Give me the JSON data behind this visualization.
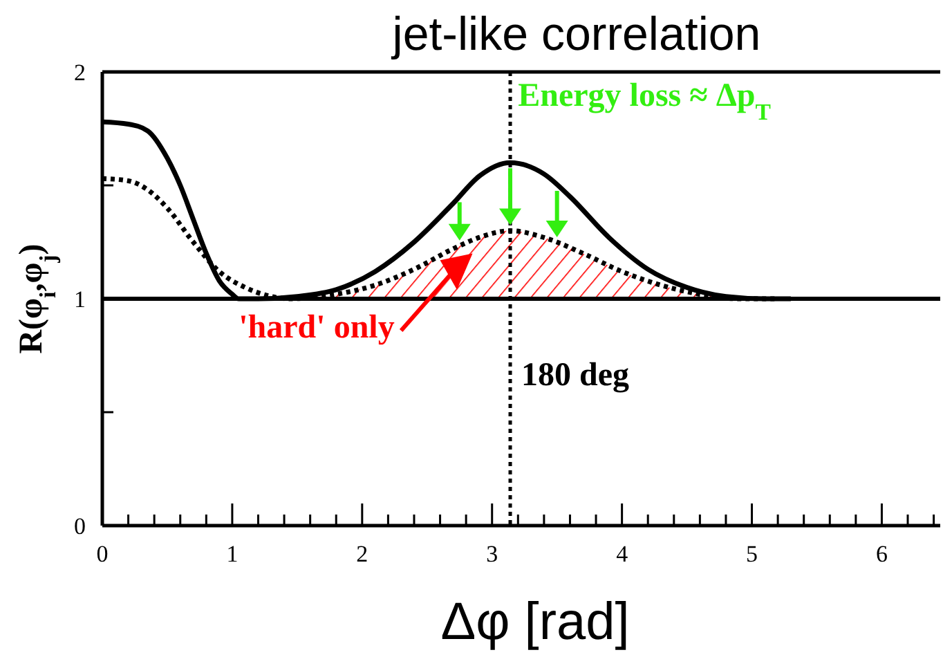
{
  "chart_data": {
    "type": "line",
    "title": "jet-like correlation",
    "xlabel": "Δφ [rad]",
    "ylabel": "R(φ$_{i}$,φ$_{j}$)",
    "xlim": [
      0,
      6.45
    ],
    "ylim": [
      0,
      2
    ],
    "xticks": [
      0,
      {
        "value": 0.2,
        "label": null
      },
      {
        "value": 0.4,
        "label": null
      },
      {
        "value": 0.6,
        "label": null
      },
      {
        "value": 0.8,
        "label": null
      },
      1,
      {
        "value": 1.2,
        "label": null
      },
      {
        "value": 1.4,
        "label": null
      },
      {
        "value": 1.6,
        "label": null
      },
      {
        "value": 1.8,
        "label": null
      },
      2,
      {
        "value": 2.2,
        "label": null
      },
      {
        "value": 2.4,
        "label": null
      },
      {
        "value": 2.6,
        "label": null
      },
      {
        "value": 2.8,
        "label": null
      },
      3,
      {
        "value": 3.2,
        "label": null
      },
      {
        "value": 3.4,
        "label": null
      },
      {
        "value": 3.6,
        "label": null
      },
      {
        "value": 3.8,
        "label": null
      },
      4,
      {
        "value": 4.2,
        "label": null
      },
      {
        "value": 4.4,
        "label": null
      },
      {
        "value": 4.6,
        "label": null
      },
      {
        "value": 4.8,
        "label": null
      },
      5,
      {
        "value": 5.2,
        "label": null
      },
      {
        "value": 5.4,
        "label": null
      },
      {
        "value": 5.6,
        "label": null
      },
      {
        "value": 5.8,
        "label": null
      },
      6,
      {
        "value": 6.2,
        "label": null
      },
      {
        "value": 6.4,
        "label": null
      }
    ],
    "yticks": [
      0,
      {
        "value": 0.5,
        "label": null
      },
      1,
      {
        "value": 1.5,
        "label": null
      },
      2
    ],
    "series": [
      {
        "type": "area",
        "color": "#ff0000",
        "x": [
          1.1,
          1.3,
          1.45,
          1.8,
          2.1,
          2.4,
          2.7,
          2.9,
          3.14,
          3.4,
          3.7,
          4.0,
          4.3,
          4.6,
          4.9,
          5.3
        ],
        "values": [
          1.0,
          1.0,
          1.0,
          1.02,
          1.06,
          1.13,
          1.22,
          1.27,
          1.3,
          1.27,
          1.2,
          1.12,
          1.06,
          1.02,
          1.0,
          1.0
        ]
      },
      {
        "color": "#000000",
        "line_style": "solid",
        "x": [
          0,
          0.2,
          0.35,
          0.5,
          0.6,
          0.7,
          0.8,
          0.9,
          1.0,
          1.05,
          1.2,
          1.5,
          1.8,
          2.1,
          2.4,
          2.7,
          2.9,
          3.14,
          3.4,
          3.6,
          3.9,
          4.2,
          4.5,
          4.8,
          5.1,
          5.3
        ],
        "values": [
          1.78,
          1.77,
          1.74,
          1.62,
          1.5,
          1.35,
          1.2,
          1.08,
          1.02,
          1.0,
          1.0,
          1.01,
          1.04,
          1.12,
          1.25,
          1.42,
          1.54,
          1.6,
          1.55,
          1.45,
          1.27,
          1.13,
          1.05,
          1.01,
          1.0,
          1.0
        ]
      },
      {
        "color": "#000000",
        "line_style": "dotted",
        "x": [
          0,
          0.2,
          0.35,
          0.5,
          0.7,
          0.9,
          1.1,
          1.3,
          1.45,
          1.8,
          2.1,
          2.4,
          2.7,
          2.9,
          3.14,
          3.4,
          3.7,
          4.0,
          4.3,
          4.6,
          4.9,
          5.2
        ],
        "values": [
          1.53,
          1.52,
          1.48,
          1.4,
          1.25,
          1.12,
          1.05,
          1.01,
          1.0,
          1.02,
          1.06,
          1.13,
          1.22,
          1.27,
          1.3,
          1.27,
          1.2,
          1.12,
          1.06,
          1.02,
          1.0,
          1.0
        ]
      }
    ],
    "ref_lines": [
      {
        "axis": "y",
        "value": 1,
        "label": null,
        "color": "#000000",
        "line_style": "solid"
      },
      {
        "axis": "x",
        "value": 3.14,
        "label": "180 deg",
        "color": "#000000",
        "line_style": "dotted"
      }
    ],
    "annotations": [
      "Energy loss ≈ Δp$_{T}$",
      "'hard' only"
    ]
  }
}
